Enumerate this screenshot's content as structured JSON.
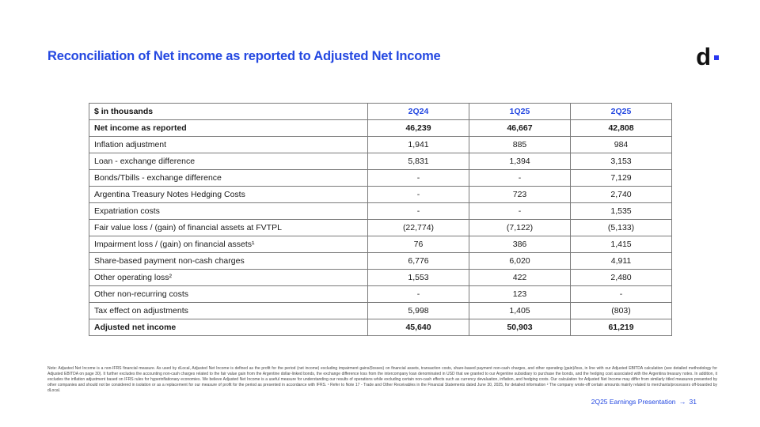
{
  "slide": {
    "title": "Reconciliation of Net income as reported to Adjusted Net Income",
    "logo": {
      "text": "d",
      "dot_color": "#2937f0"
    },
    "footer": {
      "label": "2Q25 Earnings Presentation",
      "arrow": "→",
      "page": "31"
    }
  },
  "table": {
    "headers": [
      "$ in thousands",
      "2Q24",
      "1Q25",
      "2Q25"
    ],
    "rows": [
      {
        "label": "Net income as reported",
        "values": [
          "46,239",
          "46,667",
          "42,808"
        ],
        "bold": true
      },
      {
        "label": "Inflation adjustment",
        "values": [
          "1,941",
          "885",
          "984"
        ],
        "bold": false
      },
      {
        "label": "Loan - exchange difference",
        "values": [
          "5,831",
          "1,394",
          "3,153"
        ],
        "bold": false
      },
      {
        "label": "Bonds/Tbills - exchange difference",
        "values": [
          "-",
          "-",
          "7,129"
        ],
        "bold": false
      },
      {
        "label": "Argentina Treasury Notes Hedging Costs",
        "values": [
          "-",
          "723",
          "2,740"
        ],
        "bold": false
      },
      {
        "label": "Expatriation costs",
        "values": [
          "-",
          "-",
          "1,535"
        ],
        "bold": false
      },
      {
        "label": "Fair value loss / (gain) of financial assets at FVTPL",
        "values": [
          "(22,774)",
          "(7,122)",
          "(5,133)"
        ],
        "bold": false
      },
      {
        "label": "Impairment loss / (gain) on financial assets¹",
        "values": [
          "76",
          "386",
          "1,415"
        ],
        "bold": false
      },
      {
        "label": "Share-based payment non-cash charges",
        "values": [
          "6,776",
          "6,020",
          "4,911"
        ],
        "bold": false
      },
      {
        "label": "Other operating loss²",
        "values": [
          "1,553",
          "422",
          "2,480"
        ],
        "bold": false
      },
      {
        "label": "Other non-recurring costs",
        "values": [
          "-",
          "123",
          "-"
        ],
        "bold": false
      },
      {
        "label": "Tax effect on adjustments",
        "values": [
          "5,998",
          "1,405",
          "(803)"
        ],
        "bold": false
      },
      {
        "label": "Adjusted net income",
        "values": [
          "45,640",
          "50,903",
          "61,219"
        ],
        "bold": true
      }
    ]
  },
  "note": {
    "text": "Note: Adjusted Net Income is a non-IFRS financial measure. As used by dLocal, Adjusted Net Income is defined as the profit for the period (net income) excluding impairment gains/(losses) on financial assets, transaction costs, share-based payment non-cash charges, and other operating (gain)/loss, in line with our Adjusted EBITDA calculation (see detailed methodology for Adjusted EBITDA on page 30). It further excludes the accounting non-cash charges related to the fair value gain from the Argentine dollar-linked bonds, the exchange difference loss from the intercompany loan denominated in USD that we granted to our Argentine subsidiary to purchase the bonds, and the hedging cost associated with the Argentina treasury notes. In addition, it excludes the inflation adjustment based on IFRS rules for hyperinflationary economies. We believe Adjusted Net Income is a useful measure for understanding our results of operations while excluding certain non-cash effects such as currency devaluation, inflation, and hedging costs. Our calculation for Adjusted Net Income may differ from similarly titled measures presented by other companies and should not be considered in isolation or as a replacement for our measure of profit for the period as presented in accordance with IFRS. ¹ Refer to Note 17 - Trade and Other Receivables in the Financial Statements dated June 30, 2025, for detailed information ² The company wrote-off certain amounts mainly related to merchants/processors off-boarded by dLocal."
  },
  "colors": {
    "accent_blue": "#2448e1",
    "logo_black": "#111111",
    "border_gray": "#7a7a7a"
  }
}
